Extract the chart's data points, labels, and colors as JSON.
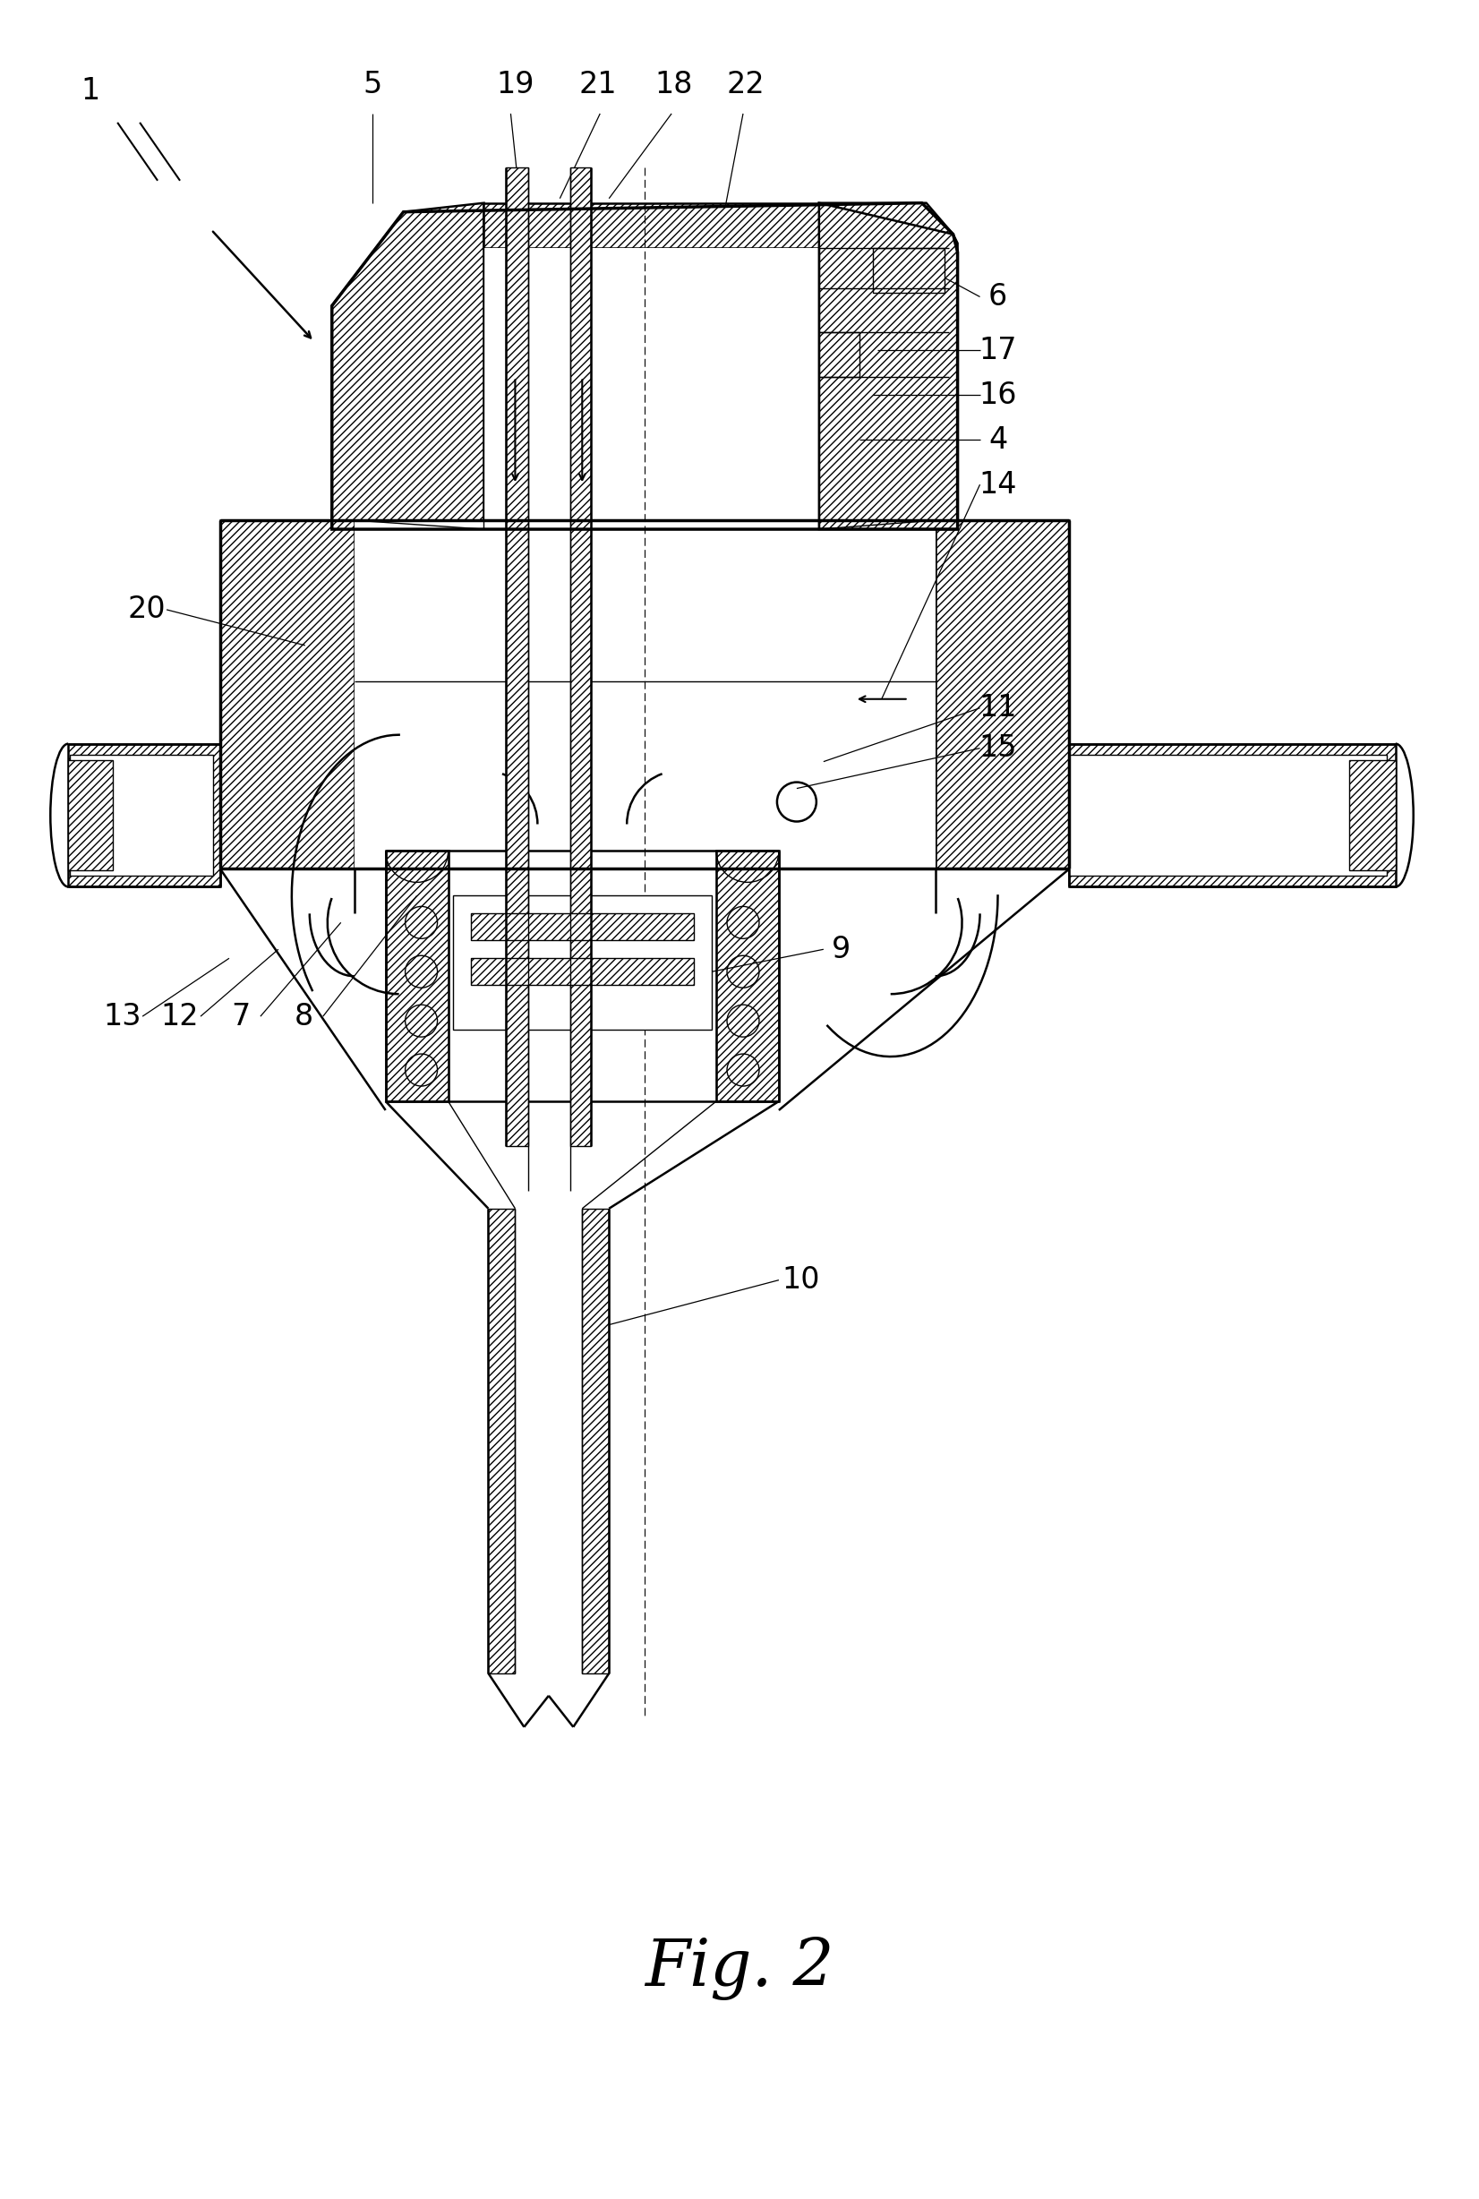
{
  "title": "Fig. 2",
  "title_fontsize": 52,
  "bg_color": "#ffffff",
  "lw_main": 1.8,
  "lw_thick": 2.5,
  "lw_thin": 1.0,
  "lw_leader": 0.9,
  "label_fontsize": 24
}
